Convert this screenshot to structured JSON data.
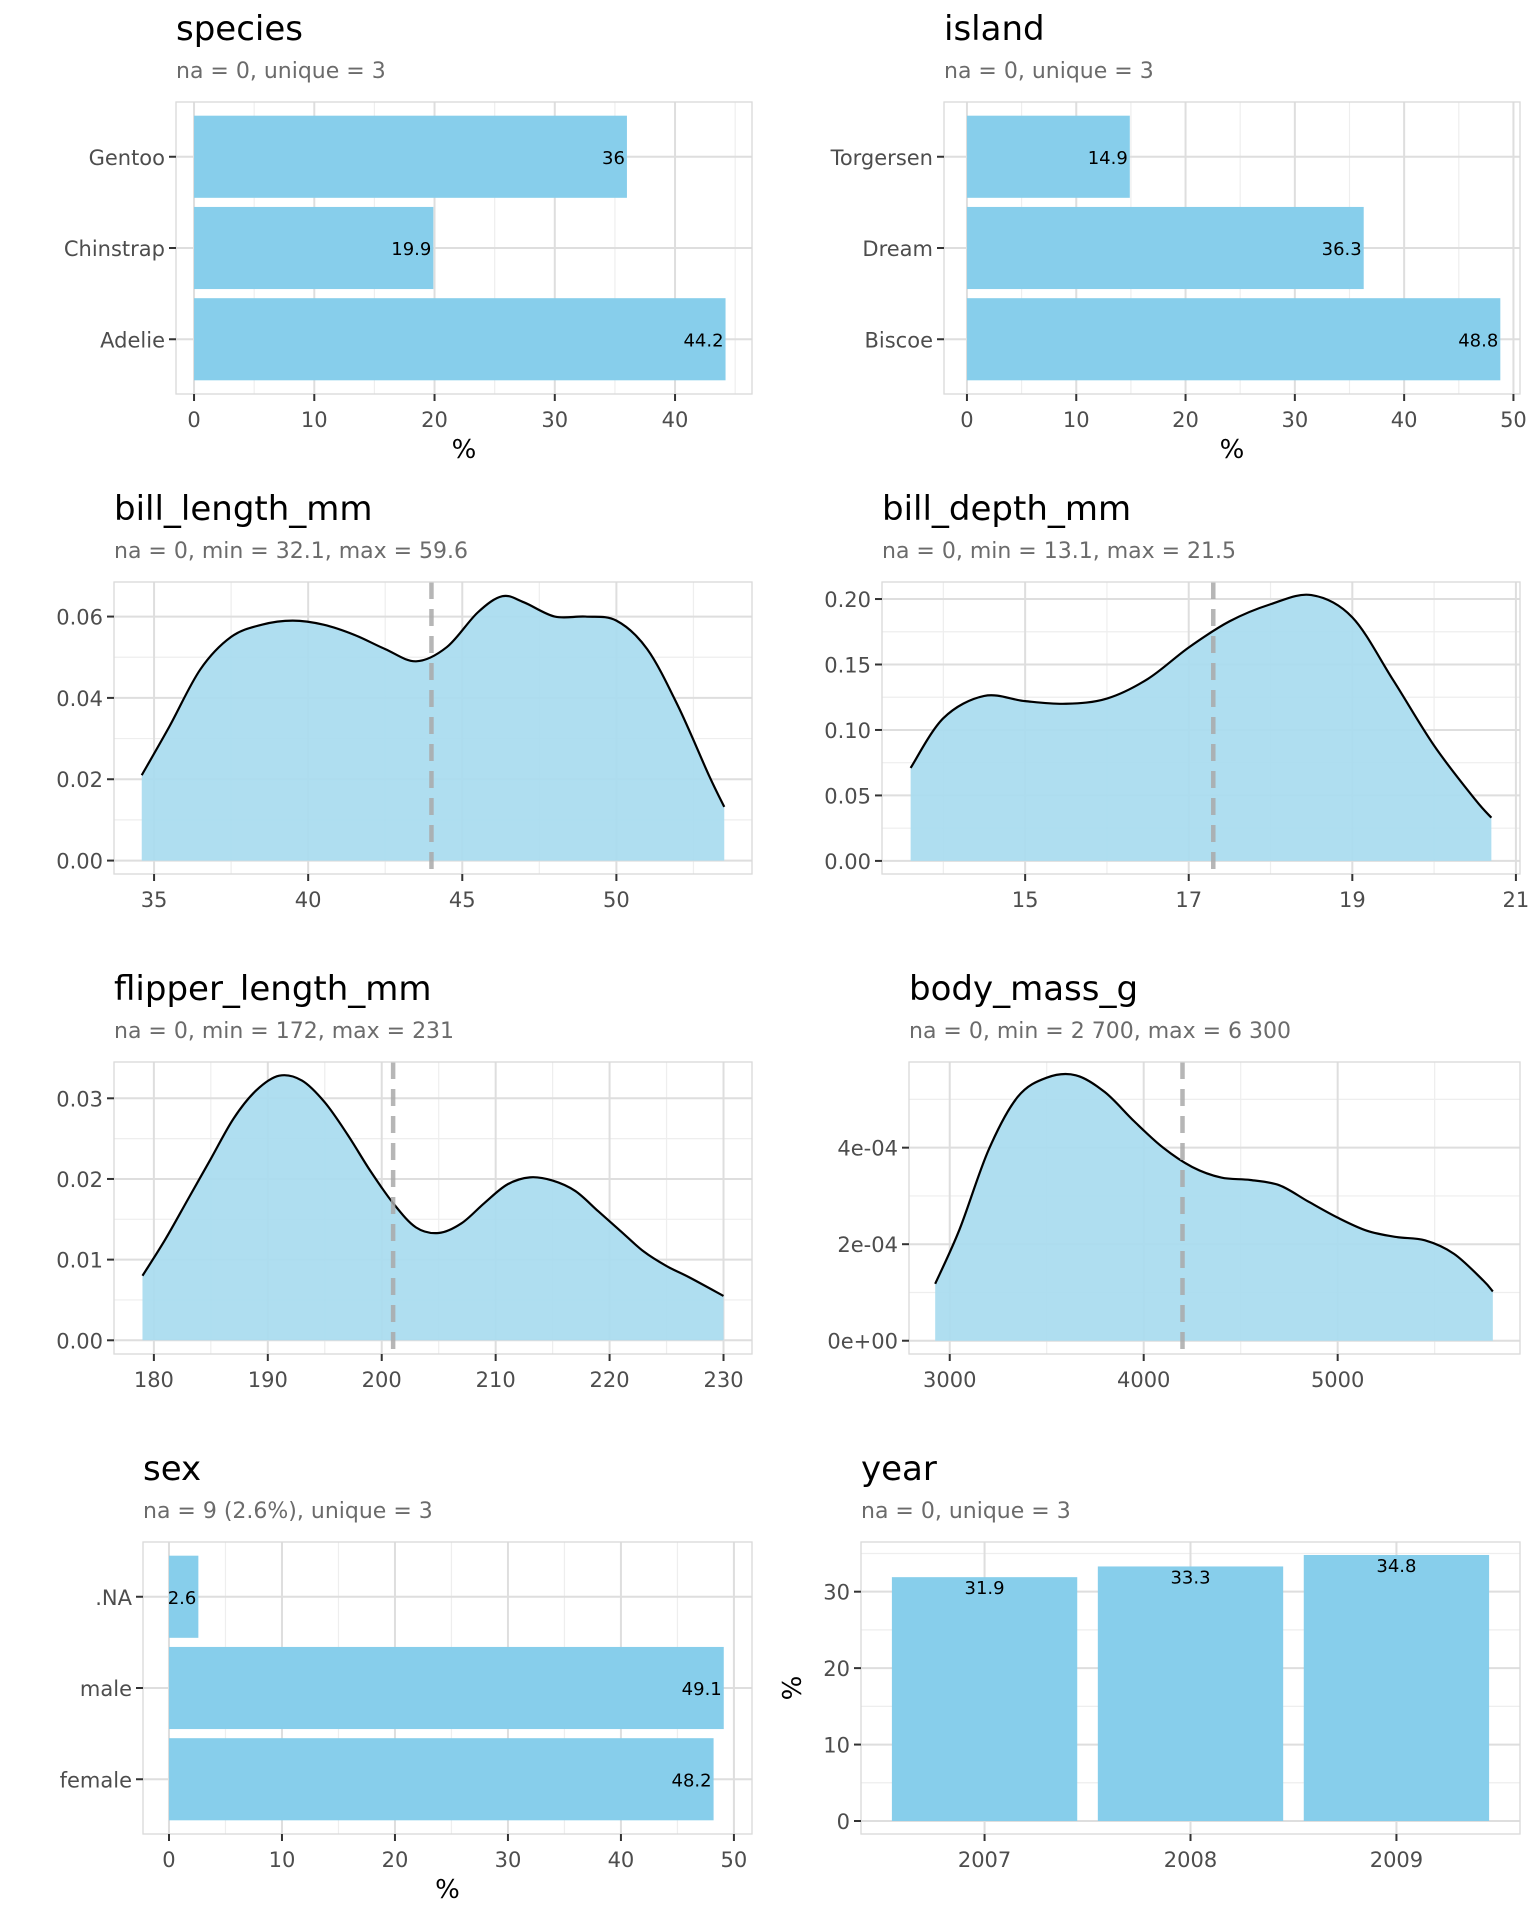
{
  "colors": {
    "fill": "#87ceeb",
    "density_fill": "#a9dcef",
    "line": "#000000",
    "median": "#a9a9a9",
    "panel_border": "#d9d9d9",
    "grid_major": "#dedede",
    "grid_minor": "#eeeeee",
    "tick_text": "#4d4d4d",
    "subtitle": "#6b6b6b"
  },
  "chart_data": [
    {
      "id": "species",
      "type": "bar",
      "orientation": "horizontal",
      "title": "species",
      "subtitle": "na = 0, unique = 3",
      "categories": [
        "Adelie",
        "Chinstrap",
        "Gentoo"
      ],
      "values": [
        44.2,
        19.9,
        36
      ],
      "labels": [
        "44.2",
        "19.9",
        "36"
      ],
      "xlabel": "%",
      "ylabel": "",
      "xlim": [
        -1.5,
        46.4
      ],
      "xticks": [
        0,
        10,
        20,
        30,
        40
      ],
      "grid": true
    },
    {
      "id": "island",
      "type": "bar",
      "orientation": "horizontal",
      "title": "island",
      "subtitle": "na = 0, unique = 3",
      "categories": [
        "Biscoe",
        "Dream",
        "Torgersen"
      ],
      "values": [
        48.8,
        36.3,
        14.9
      ],
      "labels": [
        "48.8",
        "36.3",
        "14.9"
      ],
      "xlabel": "%",
      "ylabel": "",
      "xlim": [
        -2.1,
        50.6
      ],
      "xticks": [
        0,
        10,
        20,
        30,
        40,
        50
      ],
      "grid": true
    },
    {
      "id": "bill_length_mm",
      "type": "area",
      "title": "bill_length_mm",
      "subtitle": "na = 0, min = 32.1, max = 59.6",
      "x": [
        34.6,
        35.5,
        36.5,
        37.5,
        38.5,
        39.5,
        40.5,
        41.5,
        42.5,
        43.5,
        44.5,
        45.5,
        46.3,
        47.0,
        48.0,
        49.0,
        50.0,
        51.0,
        52.0,
        53.0,
        53.5
      ],
      "y": [
        0.021,
        0.033,
        0.047,
        0.055,
        0.058,
        0.059,
        0.058,
        0.0555,
        0.052,
        0.049,
        0.0525,
        0.061,
        0.065,
        0.0635,
        0.06,
        0.06,
        0.059,
        0.052,
        0.038,
        0.021,
        0.0132
      ],
      "median": 44,
      "xlim": [
        33.7,
        54.4
      ],
      "ylim": [
        -0.0033,
        0.0685
      ],
      "xticks": [
        35,
        40,
        45,
        50
      ],
      "yticks": [
        0.0,
        0.02,
        0.04,
        0.06
      ],
      "yticklabels": [
        "0.00",
        "0.02",
        "0.04",
        "0.06"
      ],
      "xlabel": "",
      "ylabel": "",
      "grid": true
    },
    {
      "id": "bill_depth_mm",
      "type": "area",
      "title": "bill_depth_mm",
      "subtitle": "na = 0, min = 13.1, max = 21.5",
      "x": [
        13.6,
        14.0,
        14.5,
        15.0,
        15.5,
        16.0,
        16.5,
        17.0,
        17.5,
        18.0,
        18.5,
        19.0,
        19.5,
        20.0,
        20.5,
        20.7
      ],
      "y": [
        0.071,
        0.109,
        0.126,
        0.122,
        0.12,
        0.124,
        0.139,
        0.163,
        0.183,
        0.196,
        0.203,
        0.186,
        0.138,
        0.088,
        0.047,
        0.033
      ],
      "median": 17.3,
      "xlim": [
        13.25,
        21.05
      ],
      "ylim": [
        -0.01,
        0.213
      ],
      "xticks": [
        15,
        17,
        19,
        21
      ],
      "yticks": [
        0.0,
        0.05,
        0.1,
        0.15,
        0.2
      ],
      "yticklabels": [
        "0.00",
        "0.05",
        "0.10",
        "0.15",
        "0.20"
      ],
      "xlabel": "",
      "ylabel": "",
      "grid": true
    },
    {
      "id": "flipper_length_mm",
      "type": "area",
      "title": "flipper_length_mm",
      "subtitle": "na = 0, min = 172, max = 231",
      "x": [
        179,
        181,
        183,
        185,
        187,
        189,
        191,
        193,
        195,
        197,
        199,
        201,
        203,
        205,
        207,
        209,
        211,
        213,
        215,
        217,
        219,
        221,
        223,
        225,
        227,
        230
      ],
      "y": [
        0.008,
        0.0125,
        0.0175,
        0.0225,
        0.0275,
        0.031,
        0.0328,
        0.0322,
        0.0295,
        0.0255,
        0.021,
        0.017,
        0.014,
        0.0133,
        0.0145,
        0.017,
        0.0193,
        0.0202,
        0.0198,
        0.0185,
        0.016,
        0.0135,
        0.011,
        0.0092,
        0.0078,
        0.0055
      ],
      "median": 201,
      "xlim": [
        176.5,
        232.5
      ],
      "ylim": [
        -0.0017,
        0.0345
      ],
      "xticks": [
        180,
        190,
        200,
        210,
        220,
        230
      ],
      "yticks": [
        0.0,
        0.01,
        0.02,
        0.03
      ],
      "yticklabels": [
        "0.00",
        "0.01",
        "0.02",
        "0.03"
      ],
      "xlabel": "",
      "ylabel": "",
      "grid": true
    },
    {
      "id": "body_mass_g",
      "type": "area",
      "title": "body_mass_g",
      "subtitle": "na = 0, min = 2 700, max = 6 300",
      "x": [
        2925,
        3050,
        3200,
        3350,
        3500,
        3650,
        3800,
        3950,
        4100,
        4250,
        4400,
        4550,
        4700,
        4850,
        5000,
        5150,
        5300,
        5450,
        5600,
        5750,
        5800
      ],
      "y": [
        0.000118,
        0.00023,
        0.000395,
        0.000505,
        0.000545,
        0.00055,
        0.000515,
        0.000455,
        0.0004,
        0.00036,
        0.000338,
        0.000333,
        0.000322,
        0.000288,
        0.000255,
        0.000228,
        0.000215,
        0.000208,
        0.00018,
        0.000125,
        0.000102
      ],
      "median": 4200,
      "xlim": [
        2790,
        5940
      ],
      "ylim": [
        -2.75e-05,
        0.0005775
      ],
      "xticks": [
        3000,
        4000,
        5000
      ],
      "yticks": [
        0.0,
        0.0002,
        0.0004
      ],
      "yticklabels": [
        "0e+00",
        "2e-04",
        "4e-04"
      ],
      "xlabel": "",
      "ylabel": "",
      "grid": true
    },
    {
      "id": "sex",
      "type": "bar",
      "orientation": "horizontal",
      "title": "sex",
      "subtitle": "na = 9 (2.6%), unique = 3",
      "categories": [
        "female",
        "male",
        ".NA"
      ],
      "values": [
        48.2,
        49.1,
        2.6
      ],
      "labels": [
        "48.2",
        "49.1",
        "2.6"
      ],
      "xlabel": "%",
      "ylabel": "",
      "xlim": [
        -2.3,
        51.6
      ],
      "xticks": [
        0,
        10,
        20,
        30,
        40,
        50
      ],
      "grid": true
    },
    {
      "id": "year",
      "type": "bar",
      "orientation": "vertical",
      "title": "year",
      "subtitle": "na = 0, unique = 3",
      "categories": [
        "2007",
        "2008",
        "2009"
      ],
      "values": [
        31.9,
        33.3,
        34.8
      ],
      "labels": [
        "31.9",
        "33.3",
        "34.8"
      ],
      "xlabel": "",
      "ylabel": "%",
      "ylim": [
        -1.7,
        36.5
      ],
      "yticks": [
        0,
        10,
        20,
        30
      ],
      "grid": true
    }
  ]
}
